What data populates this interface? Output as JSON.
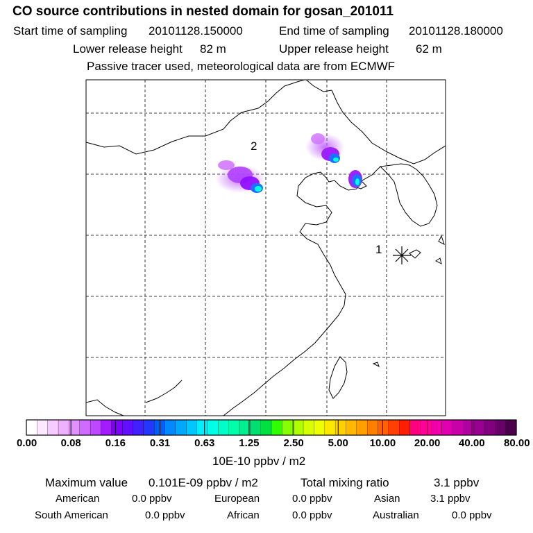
{
  "header": {
    "title": "CO  source contributions in nested domain for gosan_201011",
    "start_label": "Start time of sampling",
    "start_value": "20101128.150000",
    "end_label": "End time of sampling",
    "end_value": "20101128.180000",
    "lower_label": "Lower release height",
    "lower_value": "82 m",
    "upper_label": "Upper release height",
    "upper_value": "62 m",
    "tracer_note": "Passive tracer used, meteorological data are from ECMWF"
  },
  "map": {
    "labels": {
      "source_1": "1",
      "source_2": "2"
    },
    "colors": {
      "plume_low": "#c060ff",
      "plume_mid": "#8a00ff",
      "plume_high": "#1e90ff",
      "plume_peak": "#00ffe0"
    }
  },
  "colorbar": {
    "ticks": [
      "0.00",
      "0.08",
      "0.16",
      "0.31",
      "0.63",
      "1.25",
      "2.50",
      "5.00",
      "10.00",
      "20.00",
      "40.00",
      "80.00"
    ],
    "colors": [
      "#ffffff",
      "#fce8ff",
      "#f6ccff",
      "#eeb0ff",
      "#e090ff",
      "#cf6cff",
      "#be48ff",
      "#a21cff",
      "#8000ff",
      "#6010ff",
      "#4020ff",
      "#2238ff",
      "#0060ff",
      "#0088ff",
      "#00a8ff",
      "#00c8ff",
      "#00f0ff",
      "#00ffe8",
      "#00ffc8",
      "#00ffa8",
      "#00f090",
      "#00e070",
      "#00e040",
      "#30ff00",
      "#88ff00",
      "#b0ff00",
      "#d8ff00",
      "#f0ff00",
      "#ffe800",
      "#ffd000",
      "#ffb800",
      "#ffa000",
      "#ff8000",
      "#ff6000",
      "#ff4000",
      "#ff2000",
      "#ff0080",
      "#ff0098",
      "#f000a8",
      "#e000b0",
      "#c800a8",
      "#b000a0",
      "#980090",
      "#800080",
      "#680068",
      "#4a004a"
    ],
    "units": "10E-10 ppbv / m2"
  },
  "stats": {
    "max_label": "Maximum value",
    "max_value": "0.101E-09 ppbv / m2",
    "total_label": "Total mixing ratio",
    "total_value": "3.1 ppbv",
    "regions": [
      {
        "name": "American",
        "value": "0.0 ppbv"
      },
      {
        "name": "European",
        "value": "0.0 ppbv"
      },
      {
        "name": "Asian",
        "value": "3.1 ppbv"
      },
      {
        "name": "South American",
        "value": "0.0 ppbv"
      },
      {
        "name": "African",
        "value": "0.0 ppbv"
      },
      {
        "name": "Australian",
        "value": "0.0 ppbv"
      }
    ]
  }
}
